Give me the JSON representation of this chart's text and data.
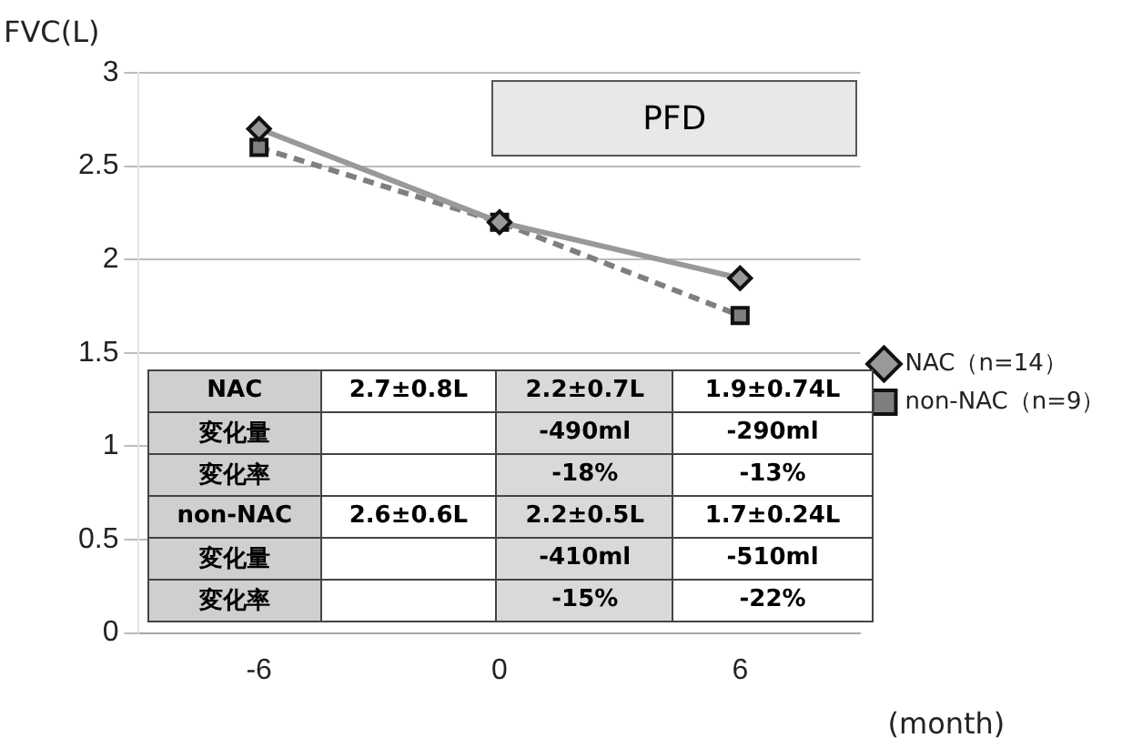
{
  "chart_data": {
    "type": "line",
    "title": "PFD",
    "ylabel": "FVC(L)",
    "xlabel": "(month)",
    "categories": [
      "-6",
      "0",
      "6"
    ],
    "series": [
      {
        "name": "NAC（n=14）",
        "color": "#999999",
        "values": [
          2.7,
          2.2,
          1.9
        ],
        "marker": "diamond",
        "line_style": "solid"
      },
      {
        "name": "non-NAC（n=9）",
        "color": "#7f7f7f",
        "values": [
          2.6,
          2.2,
          1.7
        ],
        "marker": "square",
        "line_style": "dashed"
      }
    ],
    "annotations": [
      "NAC",
      "2.7±0.8L",
      "2.2±0.7L",
      "1.9±0.74L",
      "変化量",
      "-490ml",
      "-290ml",
      "変化率",
      "-18%",
      "-13%",
      "non-NAC",
      "2.6±0.6L",
      "2.2±0.5L",
      "1.7±0.24L",
      "変化量",
      "-410ml",
      "-510ml",
      "変化率",
      "-15%",
      "-22%"
    ],
    "ylim": [
      0,
      3
    ],
    "yticks": [
      0,
      0.5,
      1,
      1.5,
      2,
      2.5,
      3
    ],
    "grid": "y",
    "legend": "right"
  }
}
